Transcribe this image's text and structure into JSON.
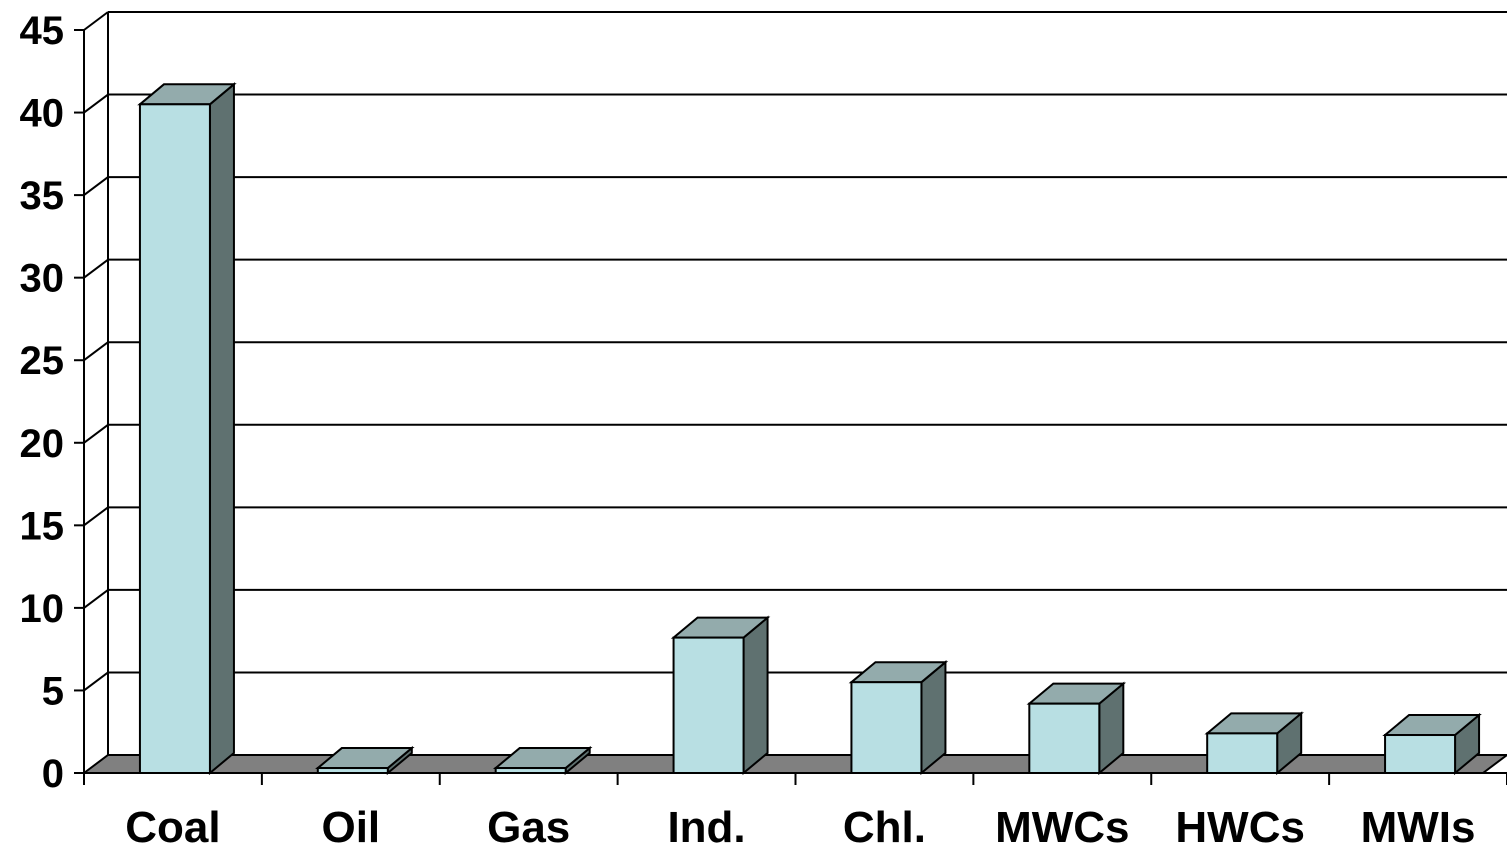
{
  "chart_data": {
    "type": "bar",
    "style": "3d-column",
    "categories": [
      "Coal",
      "Oil",
      "Gas",
      "Ind.",
      "Chl.",
      "MWCs",
      "HWCs",
      "MWIs"
    ],
    "values": [
      40.5,
      0.3,
      0.3,
      8.2,
      5.5,
      4.2,
      2.4,
      2.3
    ],
    "ylim": [
      0,
      45
    ],
    "yticks": [
      "0",
      "5",
      "10",
      "15",
      "20",
      "25",
      "30",
      "35",
      "40",
      "45"
    ],
    "grid": true,
    "legend": "none",
    "colors": {
      "bar_front": "#b8dfe3",
      "bar_top": "#93abac",
      "bar_side": "#5f7170",
      "floor": "#808080"
    }
  }
}
